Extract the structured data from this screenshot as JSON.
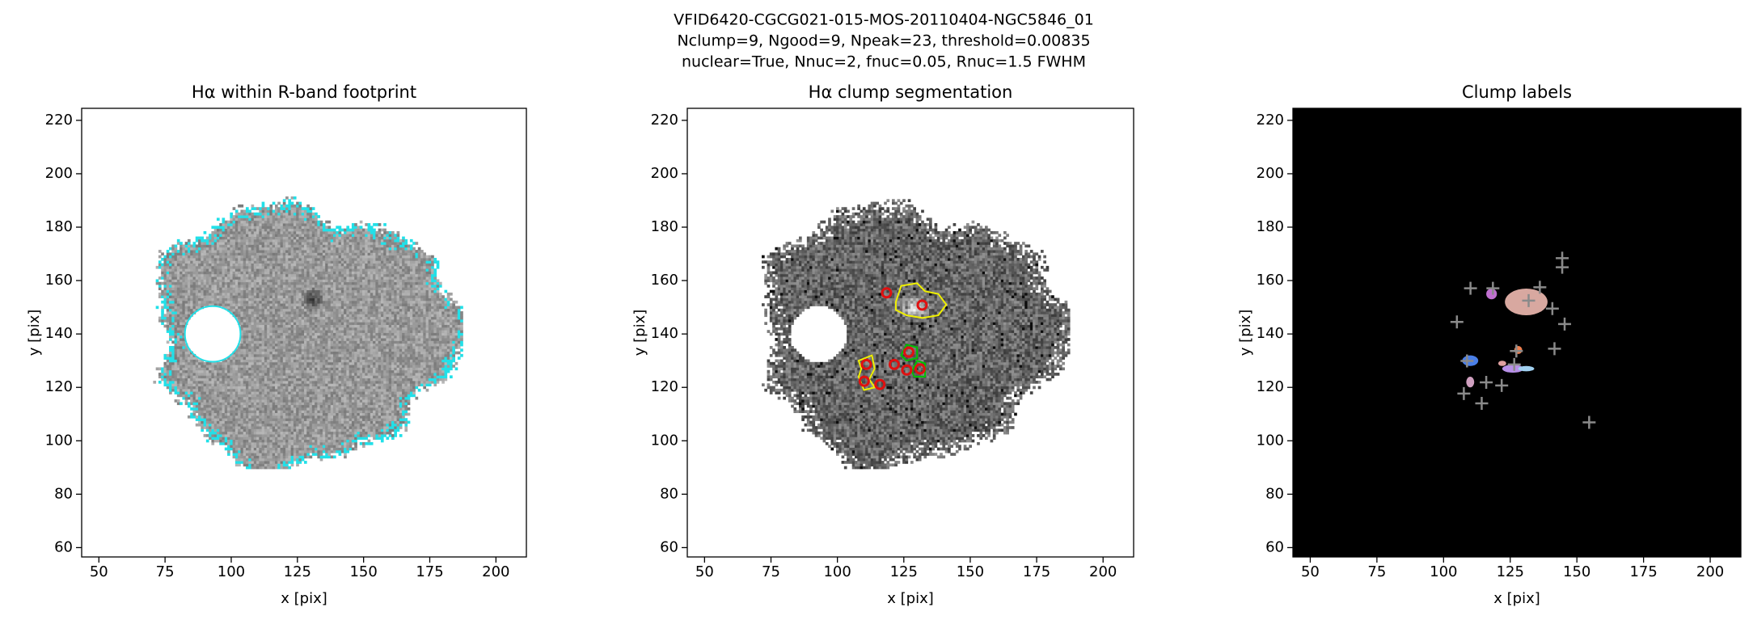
{
  "suptitle": [
    "VFID6420-CGCG021-015-MOS-20110404-NGC5846_01",
    "Nclump=9, Ngood=9, Npeak=23, threshold=0.00835",
    "nuclear=True, Nnuc=2, fnuc=0.05, Rnuc=1.5 FWHM"
  ],
  "chart_data": [
    {
      "type": "image",
      "title": "Hα within R-band footprint",
      "xlabel": "x [pix]",
      "ylabel": "y [pix]",
      "xlim": [
        43.5,
        211.5
      ],
      "ylim": [
        56.5,
        224.5
      ],
      "xticks": [
        50,
        75,
        100,
        125,
        150,
        175,
        200
      ],
      "yticks": [
        60,
        80,
        100,
        120,
        140,
        160,
        180,
        200,
        220
      ]
    },
    {
      "type": "image",
      "title": "Hα clump segmentation",
      "xlabel": "x [pix]",
      "ylabel": "y [pix]",
      "xlim": [
        43.5,
        211.5
      ],
      "ylim": [
        56.5,
        224.5
      ],
      "xticks": [
        50,
        75,
        100,
        125,
        150,
        175,
        200
      ],
      "yticks": [
        60,
        80,
        100,
        120,
        140,
        160,
        180,
        200,
        220
      ],
      "markers": {
        "marker": "circle",
        "color": "#e01010",
        "x": [
          131.9,
          118.5,
          110.9,
          110.1,
          116.0,
          121.4,
          126.1,
          126.9,
          131.1
        ],
        "y": [
          150.8,
          155.4,
          128.6,
          122.3,
          121.1,
          128.6,
          126.5,
          133.2,
          126.9
        ]
      }
    },
    {
      "type": "image",
      "title": "Clump labels",
      "xlabel": "x [pix]",
      "ylabel": "y [pix]",
      "xlim": [
        43.5,
        211.5
      ],
      "ylim": [
        56.5,
        224.5
      ],
      "xticks": [
        50,
        75,
        100,
        125,
        150,
        175,
        200
      ],
      "yticks": [
        60,
        80,
        100,
        120,
        140,
        160,
        180,
        200,
        220
      ],
      "markers": {
        "marker": "plus",
        "color": "#8a8a8a",
        "x": [
          110.1,
          118.5,
          131.9,
          136.1,
          144.5,
          144.5,
          140.8,
          145.4,
          105.0,
          141.6,
          108.8,
          127.3,
          107.6,
          114.3,
          121.8,
          116.0,
          154.6,
          126.5
        ],
        "y": [
          157.1,
          157.1,
          152.5,
          157.5,
          168.4,
          165.0,
          149.5,
          143.7,
          144.5,
          134.5,
          129.9,
          133.6,
          117.7,
          114.0,
          120.7,
          121.9,
          106.9,
          128.6
        ]
      }
    }
  ]
}
